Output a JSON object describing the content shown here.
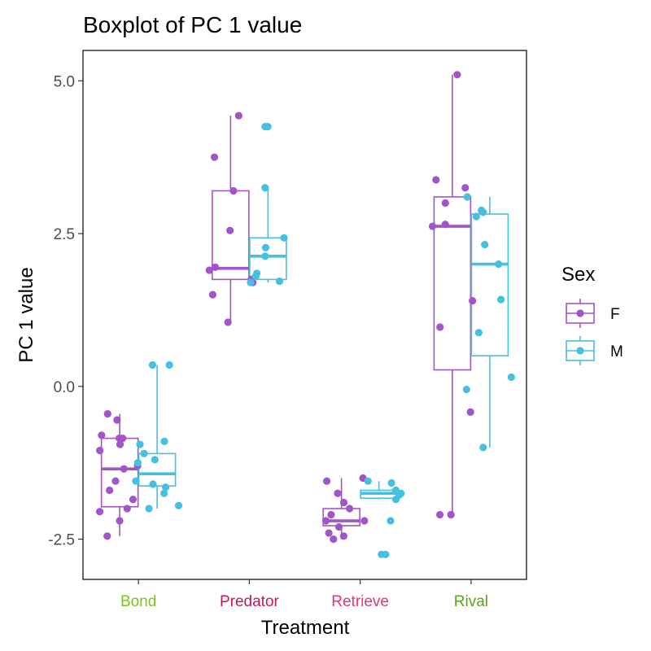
{
  "chart_data": {
    "type": "boxplot",
    "title": "Boxplot of PC 1 value",
    "xlabel": "Treatment",
    "ylabel": "PC 1 value",
    "ylim": [
      -3.2,
      5.6
    ],
    "yticks": [
      -2.5,
      0.0,
      2.5,
      5.0
    ],
    "ytick_labels": [
      "-2.5",
      "0.0",
      "2.5",
      "5.0"
    ],
    "grid": false,
    "legend_position": "right",
    "legend_title": "Sex",
    "categories": [
      "Bond",
      "Predator",
      "Retrieve",
      "Rival"
    ],
    "category_colors": [
      "#7cc51a",
      "#c2185b",
      "#e0357c",
      "#5ba31a"
    ],
    "series": [
      {
        "name": "F",
        "color": "#a155c7",
        "boxes": [
          {
            "category": "Bond",
            "min": -2.45,
            "q1": -1.97,
            "median": -1.35,
            "q3": -0.85,
            "max": -0.45
          },
          {
            "category": "Predator",
            "min": 1.05,
            "q1": 1.75,
            "median": 1.93,
            "q3": 3.2,
            "max": 4.43
          },
          {
            "category": "Retrieve",
            "min": -2.5,
            "q1": -2.28,
            "median": -2.2,
            "q3": -2.0,
            "max": -1.5
          },
          {
            "category": "Rival",
            "min": -2.1,
            "q1": 0.27,
            "median": 2.62,
            "q3": 3.1,
            "max": 5.1
          }
        ],
        "points": [
          {
            "category": "Bond",
            "values": [
              -0.85,
              -0.85,
              -0.8,
              -0.45,
              -0.55,
              -0.95,
              -1.05,
              -1.3,
              -1.35,
              -1.55,
              -1.7,
              -1.85,
              -2.0,
              -2.05,
              -2.2,
              -2.45
            ]
          },
          {
            "category": "Predator",
            "values": [
              4.43,
              3.75,
              3.2,
              2.55,
              1.95,
              1.9,
              1.75,
              1.7,
              1.5,
              1.05
            ]
          },
          {
            "category": "Retrieve",
            "values": [
              -1.5,
              -1.55,
              -1.75,
              -1.9,
              -2.0,
              -2.1,
              -2.2,
              -2.2,
              -2.3,
              -2.4,
              -2.45,
              -2.5
            ]
          },
          {
            "category": "Rival",
            "values": [
              3.38,
              3.25,
              3.0,
              2.65,
              2.62,
              1.4,
              0.97,
              -0.42,
              -2.1,
              -2.1,
              5.1
            ]
          }
        ]
      },
      {
        "name": "M",
        "color": "#45c0e0",
        "boxes": [
          {
            "category": "Bond",
            "min": -2.0,
            "q1": -1.63,
            "median": -1.43,
            "q3": -1.1,
            "max": 0.35
          },
          {
            "category": "Predator",
            "min": 1.7,
            "q1": 1.75,
            "median": 2.13,
            "q3": 2.43,
            "max": 3.25
          },
          {
            "category": "Retrieve",
            "min": -1.85,
            "q1": -1.83,
            "median": -1.75,
            "q3": -1.7,
            "max": -1.55
          },
          {
            "category": "Rival",
            "min": -1.0,
            "q1": 0.5,
            "median": 2.0,
            "q3": 2.82,
            "max": 3.1
          }
        ],
        "points": [
          {
            "category": "Bond",
            "values": [
              0.35,
              0.35,
              -0.9,
              -0.95,
              -1.1,
              -1.2,
              -1.25,
              -1.55,
              -1.6,
              -1.65,
              -1.75,
              -1.95,
              -2.0
            ]
          },
          {
            "category": "Predator",
            "values": [
              4.25,
              4.25,
              3.25,
              2.43,
              2.27,
              2.13,
              1.85,
              1.8,
              1.72,
              1.7
            ]
          },
          {
            "category": "Retrieve",
            "values": [
              -1.55,
              -1.58,
              -1.7,
              -1.75,
              -1.78,
              -1.85,
              -2.2,
              -2.75,
              -2.75
            ]
          },
          {
            "category": "Rival",
            "values": [
              3.1,
              2.88,
              2.85,
              2.78,
              2.32,
              2.0,
              1.42,
              0.88,
              0.15,
              -0.05,
              -1.0
            ]
          }
        ]
      }
    ]
  }
}
